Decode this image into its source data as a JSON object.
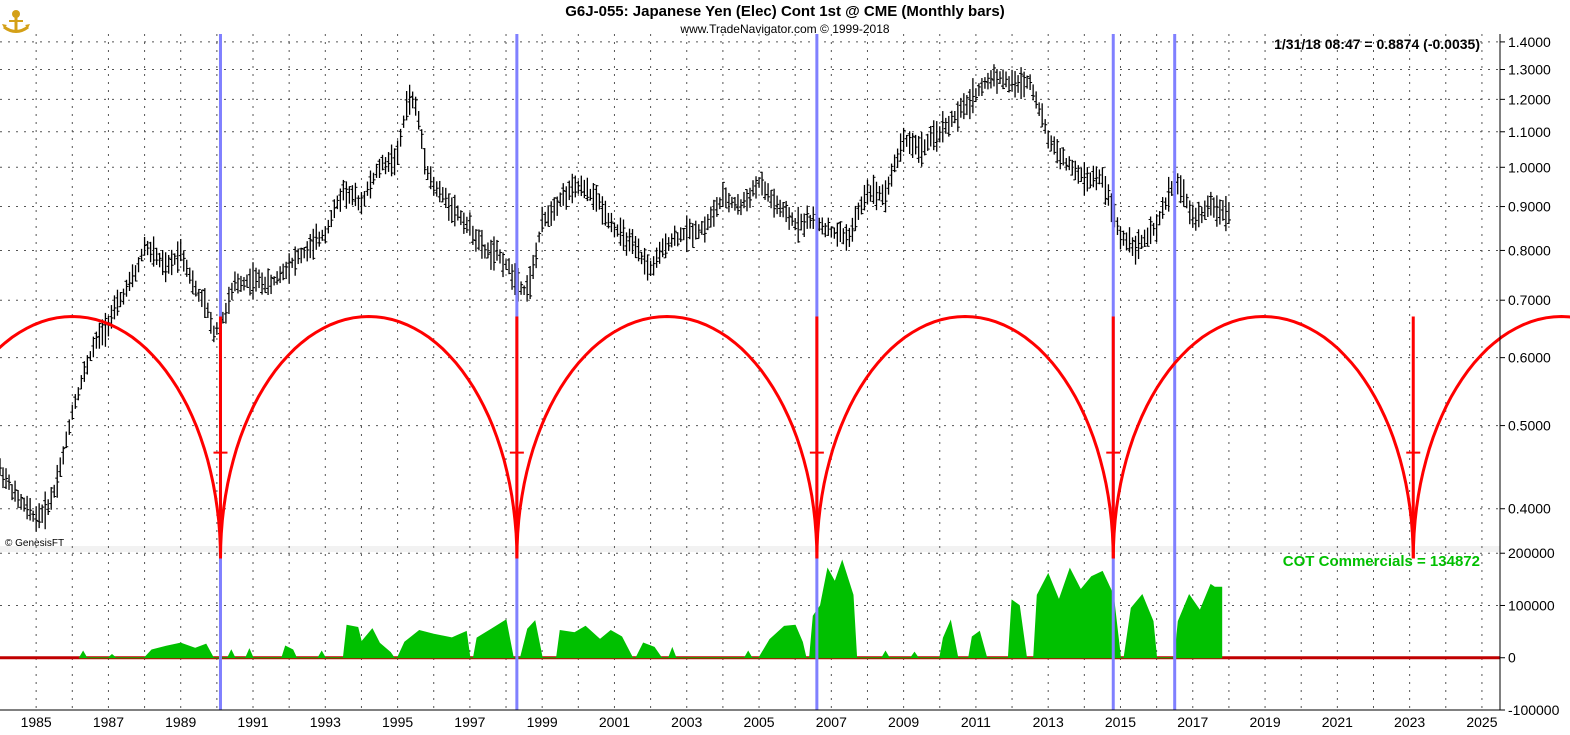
{
  "chart_title": "G6J-055:  Japanese Yen (Elec) Cont 1st @ CME  (Monthly bars)",
  "chart_subtitle": "www.TradeNavigator.com © 1999-2018",
  "last_quote": "1/31/18 08:47 = 0.8874 (-0.0035)",
  "indicator_label": "COT Commercials = 134872",
  "credit": "© GenesisFT",
  "logo_icon": "anchor-icon",
  "colors": {
    "price_bars": "#000000",
    "cycle_arcs": "#ff0000",
    "cycle_lines": "#8080ff",
    "cot_area": "#00c000",
    "zero_line": "#c00000",
    "grid": "#555555"
  },
  "chart_data": [
    {
      "type": "ohlc",
      "panel": "price",
      "y_scale": "log",
      "ylim": [
        0.36,
        1.43
      ],
      "y_ticks": [
        "1.4000",
        "1.3000",
        "1.2000",
        "1.1000",
        "1.0000",
        "0.9000",
        "0.8000",
        "0.7000",
        "0.6000",
        "0.5000",
        "0.4000"
      ],
      "x_ticks": [
        "1985",
        "1987",
        "1989",
        "1991",
        "1993",
        "1995",
        "1997",
        "1999",
        "2001",
        "2003",
        "2005",
        "2007",
        "2009",
        "2011",
        "2013",
        "2015",
        "2017",
        "2019",
        "2021",
        "2023",
        "2025"
      ],
      "xlim": [
        1984.0,
        2025.5
      ],
      "grid": true,
      "series": [
        {
          "points": [
            [
              1984.0,
              0.445
            ],
            [
              1984.5,
              0.41
            ],
            [
              1985.0,
              0.39
            ],
            [
              1985.3,
              0.4
            ],
            [
              1985.5,
              0.42
            ],
            [
              1985.8,
              0.47
            ],
            [
              1986.0,
              0.52
            ],
            [
              1986.3,
              0.57
            ],
            [
              1986.6,
              0.62
            ],
            [
              1987.0,
              0.66
            ],
            [
              1987.5,
              0.72
            ],
            [
              1987.8,
              0.76
            ],
            [
              1988.0,
              0.81
            ],
            [
              1988.3,
              0.79
            ],
            [
              1988.6,
              0.76
            ],
            [
              1989.0,
              0.8
            ],
            [
              1989.4,
              0.72
            ],
            [
              1989.7,
              0.69
            ],
            [
              1989.9,
              0.64
            ],
            [
              1990.2,
              0.67
            ],
            [
              1990.5,
              0.73
            ],
            [
              1991.0,
              0.74
            ],
            [
              1991.5,
              0.73
            ],
            [
              1992.0,
              0.77
            ],
            [
              1992.5,
              0.8
            ],
            [
              1993.0,
              0.84
            ],
            [
              1993.5,
              0.94
            ],
            [
              1994.0,
              0.91
            ],
            [
              1994.5,
              1.0
            ],
            [
              1995.0,
              1.03
            ],
            [
              1995.3,
              1.21
            ],
            [
              1995.5,
              1.18
            ],
            [
              1995.8,
              1.0
            ],
            [
              1996.0,
              0.95
            ],
            [
              1996.5,
              0.9
            ],
            [
              1997.0,
              0.85
            ],
            [
              1997.4,
              0.8
            ],
            [
              1997.8,
              0.79
            ],
            [
              1998.2,
              0.75
            ],
            [
              1998.5,
              0.72
            ],
            [
              1998.7,
              0.74
            ],
            [
              1999.0,
              0.86
            ],
            [
              1999.5,
              0.92
            ],
            [
              2000.0,
              0.95
            ],
            [
              2000.5,
              0.92
            ],
            [
              2001.0,
              0.85
            ],
            [
              2001.5,
              0.81
            ],
            [
              2002.0,
              0.76
            ],
            [
              2002.5,
              0.82
            ],
            [
              2003.0,
              0.84
            ],
            [
              2003.5,
              0.85
            ],
            [
              2004.0,
              0.92
            ],
            [
              2004.5,
              0.9
            ],
            [
              2005.0,
              0.96
            ],
            [
              2005.5,
              0.9
            ],
            [
              2006.0,
              0.86
            ],
            [
              2006.5,
              0.87
            ],
            [
              2007.0,
              0.84
            ],
            [
              2007.5,
              0.83
            ],
            [
              2008.0,
              0.94
            ],
            [
              2008.5,
              0.93
            ],
            [
              2009.0,
              1.08
            ],
            [
              2009.5,
              1.05
            ],
            [
              2010.0,
              1.1
            ],
            [
              2010.5,
              1.15
            ],
            [
              2011.0,
              1.22
            ],
            [
              2011.5,
              1.28
            ],
            [
              2012.0,
              1.25
            ],
            [
              2012.5,
              1.26
            ],
            [
              2013.0,
              1.08
            ],
            [
              2013.5,
              1.01
            ],
            [
              2014.0,
              0.97
            ],
            [
              2014.5,
              0.97
            ],
            [
              2015.0,
              0.83
            ],
            [
              2015.5,
              0.81
            ],
            [
              2016.0,
              0.85
            ],
            [
              2016.5,
              0.97
            ],
            [
              2016.8,
              0.92
            ],
            [
              2017.0,
              0.87
            ],
            [
              2017.5,
              0.9
            ],
            [
              2018.0,
              0.887
            ]
          ]
        }
      ]
    },
    {
      "type": "area",
      "panel": "indicator",
      "ylim": [
        -100000,
        210000
      ],
      "y_ticks": [
        "200000",
        "100000",
        "0",
        "-100000"
      ],
      "series": [
        {
          "name": "COT Commercials",
          "points": [
            [
              1986.2,
              0
            ],
            [
              1986.3,
              12000
            ],
            [
              1986.4,
              0
            ],
            [
              1987.0,
              0
            ],
            [
              1987.1,
              6000
            ],
            [
              1987.2,
              0
            ],
            [
              1988.0,
              0
            ],
            [
              1988.2,
              15000
            ],
            [
              1988.6,
              22000
            ],
            [
              1989.0,
              28000
            ],
            [
              1989.4,
              18000
            ],
            [
              1989.7,
              26000
            ],
            [
              1989.9,
              0
            ],
            [
              1990.3,
              0
            ],
            [
              1990.4,
              14000
            ],
            [
              1990.5,
              0
            ],
            [
              1990.8,
              0
            ],
            [
              1990.9,
              16000
            ],
            [
              1991.0,
              0
            ],
            [
              1991.8,
              0
            ],
            [
              1991.9,
              22000
            ],
            [
              1992.1,
              15000
            ],
            [
              1992.2,
              0
            ],
            [
              1992.8,
              0
            ],
            [
              1992.9,
              12000
            ],
            [
              1993.0,
              0
            ],
            [
              1993.5,
              0
            ],
            [
              1993.6,
              62000
            ],
            [
              1993.9,
              58000
            ],
            [
              1994.0,
              30000
            ],
            [
              1994.3,
              55000
            ],
            [
              1994.5,
              28000
            ],
            [
              1994.8,
              10000
            ],
            [
              1994.9,
              0
            ],
            [
              1995.0,
              0
            ],
            [
              1995.2,
              30000
            ],
            [
              1995.6,
              52000
            ],
            [
              1996.0,
              45000
            ],
            [
              1996.5,
              38000
            ],
            [
              1996.9,
              50000
            ],
            [
              1997.0,
              0
            ],
            [
              1997.1,
              0
            ],
            [
              1997.2,
              38000
            ],
            [
              1997.6,
              55000
            ],
            [
              1998.0,
              72000
            ],
            [
              1998.2,
              0
            ],
            [
              1998.4,
              0
            ],
            [
              1998.6,
              55000
            ],
            [
              1998.8,
              70000
            ],
            [
              1999.0,
              0
            ],
            [
              1999.4,
              0
            ],
            [
              1999.5,
              52000
            ],
            [
              1999.9,
              48000
            ],
            [
              2000.2,
              60000
            ],
            [
              2000.6,
              35000
            ],
            [
              2000.9,
              52000
            ],
            [
              2001.2,
              40000
            ],
            [
              2001.5,
              0
            ],
            [
              2001.6,
              0
            ],
            [
              2001.8,
              28000
            ],
            [
              2002.1,
              20000
            ],
            [
              2002.3,
              0
            ],
            [
              2002.5,
              0
            ],
            [
              2002.6,
              18000
            ],
            [
              2002.7,
              0
            ],
            [
              2004.6,
              0
            ],
            [
              2004.7,
              12000
            ],
            [
              2004.8,
              0
            ],
            [
              2005.0,
              0
            ],
            [
              2005.3,
              35000
            ],
            [
              2005.7,
              60000
            ],
            [
              2006.0,
              62000
            ],
            [
              2006.2,
              30000
            ],
            [
              2006.3,
              0
            ],
            [
              2006.4,
              0
            ],
            [
              2006.5,
              80000
            ],
            [
              2006.7,
              100000
            ],
            [
              2006.9,
              170000
            ],
            [
              2007.1,
              145000
            ],
            [
              2007.3,
              185000
            ],
            [
              2007.6,
              120000
            ],
            [
              2007.7,
              0
            ],
            [
              2008.4,
              0
            ],
            [
              2008.5,
              12000
            ],
            [
              2008.6,
              0
            ],
            [
              2009.2,
              0
            ],
            [
              2009.3,
              10000
            ],
            [
              2009.4,
              0
            ],
            [
              2010.0,
              0
            ],
            [
              2010.1,
              38000
            ],
            [
              2010.3,
              70000
            ],
            [
              2010.5,
              0
            ],
            [
              2010.8,
              0
            ],
            [
              2010.9,
              40000
            ],
            [
              2011.1,
              50000
            ],
            [
              2011.3,
              0
            ],
            [
              2011.9,
              0
            ],
            [
              2012.0,
              110000
            ],
            [
              2012.2,
              100000
            ],
            [
              2012.4,
              0
            ],
            [
              2012.6,
              0
            ],
            [
              2012.7,
              120000
            ],
            [
              2013.0,
              160000
            ],
            [
              2013.3,
              110000
            ],
            [
              2013.6,
              170000
            ],
            [
              2013.9,
              130000
            ],
            [
              2014.2,
              155000
            ],
            [
              2014.5,
              165000
            ],
            [
              2014.8,
              120000
            ],
            [
              2015.0,
              0
            ],
            [
              2015.1,
              0
            ],
            [
              2015.3,
              95000
            ],
            [
              2015.6,
              120000
            ],
            [
              2015.9,
              70000
            ],
            [
              2016.0,
              0
            ],
            [
              2016.5,
              0
            ],
            [
              2016.6,
              70000
            ],
            [
              2016.9,
              120000
            ],
            [
              2017.2,
              90000
            ],
            [
              2017.5,
              140000
            ],
            [
              2017.6,
              135000
            ],
            [
              2017.8,
              134872
            ],
            [
              2017.8,
              0
            ]
          ]
        }
      ]
    },
    {
      "type": "cycle",
      "panel": "price",
      "cycle_lows": [
        1990.1,
        1998.3,
        2006.6,
        2014.8,
        2023.1
      ],
      "cycle_markers": [
        1990.1,
        1998.3,
        2006.6,
        2014.8,
        2016.5
      ],
      "arc_top": 0.67,
      "arc_bottom": 0.35
    }
  ]
}
